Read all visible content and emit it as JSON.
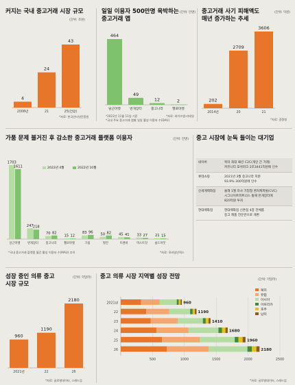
{
  "colors": {
    "orange": "#e8762a",
    "green": "#7ec26d",
    "lightGreen": "#b4dca3",
    "darkGreen": "#3f8a3c",
    "peach": "#f3a670",
    "yellow": "#e6c219",
    "brown": "#8a5a2b",
    "ink": "#333333"
  },
  "panels": {
    "p1": {
      "title": "커지는 국내 중고거래 시장 규모",
      "unit": "(단위: 조원)",
      "source": "*자료: 한국인터넷진흥원"
    },
    "p2": {
      "title": "일일 이용자 500만명 육박하는\n중고거래 앱",
      "unit": "(단위: 만명)",
      "source_a": "*2022년 11월 11일 기준",
      "source_b": "*자료: 와이즈앱·리테일",
      "note": "*국내 주요 중고거래 앱별 일일 활성 이용자 수(DAU)"
    },
    "p3": {
      "title": "중고거래 사기 피해액도\n매년 증가하는 추세",
      "unit": "(단위: 억원)",
      "source": "*자료: 경찰청"
    },
    "p4": {
      "title": "가품 문제 불거진 후 감소한 중고거래 플랫폼 이용자",
      "unit": "(단위: 만명)",
      "source_a": "*국내 중고거래 플랫폼 월간 활성 이용자 수(MAU) 추이",
      "source_b": "*자료: 모바일인덱스"
    },
    "p5": {
      "title": "중고 시장에 눈독 들이는 대기업",
      "rows": [
        {
          "company": "네이버",
          "event": "북미 최대 패션 C2C(개인 간 거래)\n커뮤니티 포쉬마크 2조3441억원에 인수"
        },
        {
          "company": "롯데쇼핑",
          "event": "2021년 3월 중고나라 지분\n93.9% 300억원에 인수"
        },
        {
          "company": "신세계백화점",
          "event": "올해 1월 자사 기업형 벤처캐피털(CVC)\n시그나이트파트너스 통해 번개장터에\n820억원 투자"
        },
        {
          "company": "현대백화점",
          "event": "현대백화점 신촌점 4층 전체를\n중고 제품 전문관으로 개편"
        }
      ]
    },
    "p6": {
      "title": "성장 중인 의류 중고\n시장 규모",
      "unit": "(단위: 억달러)",
      "source": "*자료: 글로벌데이터, 스레드업"
    },
    "p7": {
      "title": "중고 의류 시장 지역별 성장 전망",
      "unit": "(단위: 억달러)",
      "source": "*자료: 글로벌데이터, 스레드업"
    }
  },
  "chart_data": [
    {
      "id": "market",
      "type": "bar",
      "categories": [
        "2008년",
        "21",
        "25(전망)"
      ],
      "values": [
        4,
        24,
        43
      ],
      "title": "커지는 국내 중고거래 시장 규모"
    },
    {
      "id": "dau",
      "type": "bar",
      "categories": [
        "당근마켓",
        "번개장터",
        "중고나라",
        "헬로마켓"
      ],
      "values": [
        464,
        49,
        12,
        2
      ],
      "title": "일일 이용자 500만명 육박하는 중고거래 앱"
    },
    {
      "id": "fraud",
      "type": "bar",
      "categories": [
        "2014년",
        "20",
        "21"
      ],
      "values": [
        202,
        2709,
        3606
      ],
      "title": "중고거래 사기 피해액도 매년 증가하는 추세"
    },
    {
      "id": "mau",
      "type": "bar",
      "categories": [
        "당근마켓",
        "번개장터",
        "중고나라",
        "헬로마켓",
        "크림",
        "발란",
        "트렌비",
        "머스트잇",
        "솔드아웃"
      ],
      "series": [
        {
          "name": "2022년 4월",
          "values": [
            1703,
            247,
            70,
            15,
            83,
            50,
            45,
            33,
            21
          ]
        },
        {
          "name": "2022년 10월",
          "values": [
            1611,
            218,
            82,
            12,
            96,
            82,
            41,
            27,
            15
          ]
        }
      ],
      "legend": "top-right",
      "title": "가품 문제 불거진 후 감소한 중고거래 플랫폼 이용자"
    },
    {
      "id": "apparel",
      "type": "bar",
      "categories": [
        "2021년",
        "22",
        "26"
      ],
      "values": [
        960,
        1190,
        2180
      ],
      "title": "성장 중인 의류 중고 시장 규모"
    },
    {
      "id": "regional",
      "type": "bar",
      "orientation": "horizontal",
      "stacked": true,
      "categories": [
        "2021년",
        "22",
        "23",
        "24",
        "25",
        "26"
      ],
      "totals": [
        960,
        1190,
        1410,
        1680,
        1960,
        2180
      ],
      "series": [
        {
          "name": "북미",
          "values": [
            320,
            400,
            470,
            560,
            650,
            725
          ]
        },
        {
          "name": "유럽",
          "values": [
            290,
            360,
            425,
            505,
            590,
            655
          ]
        },
        {
          "name": "아시아",
          "values": [
            270,
            330,
            395,
            470,
            550,
            610
          ]
        },
        {
          "name": "아프리카",
          "values": [
            30,
            40,
            45,
            55,
            60,
            70
          ]
        },
        {
          "name": "호주",
          "values": [
            30,
            35,
            45,
            55,
            65,
            70
          ]
        },
        {
          "name": "남미",
          "values": [
            20,
            25,
            30,
            35,
            45,
            50
          ]
        }
      ],
      "xticks": [
        500,
        1000,
        1500,
        2000,
        2500
      ],
      "xlim": [
        0,
        2500
      ],
      "legend": "top-right",
      "title": "중고 의류 시장 지역별 성장 전망"
    }
  ]
}
